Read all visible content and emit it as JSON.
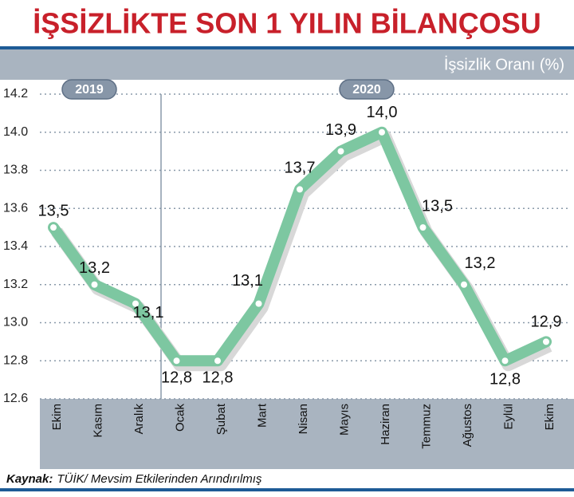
{
  "chart_data": {
    "type": "line",
    "title": "İŞSİZLİKTE SON 1 YILIN BİLANÇOSU",
    "y_label": "İşsizlik Oranı (%)",
    "annotations": [
      "2019",
      "2020"
    ],
    "source_label": "Kaynak:",
    "source": "TÜİK/ Mevsim Etkilerinden Arındırılmış",
    "categories": [
      "Ekim",
      "Kasım",
      "Aralık",
      "Ocak",
      "Şubat",
      "Mart",
      "Nisan",
      "Mayıs",
      "Haziran",
      "Temmuz",
      "Ağustos",
      "Eylül",
      "Ekim"
    ],
    "series": [
      {
        "name": "İşsizlik Oranı",
        "color": "#7dc7a1",
        "values": [
          13.5,
          13.2,
          13.1,
          12.8,
          12.8,
          13.1,
          13.7,
          13.9,
          14.0,
          13.5,
          13.2,
          12.8,
          12.9
        ],
        "value_labels": [
          "13,5",
          "13,2",
          "13,1",
          "12,8",
          "12,8",
          "13,1",
          "13,7",
          "13,9",
          "14,0",
          "13,5",
          "13,2",
          "12,8",
          "12,9"
        ]
      }
    ],
    "ylim": [
      12.6,
      14.2
    ],
    "yticks": [
      12.6,
      12.8,
      {
        "value": 13,
        "label": "13.0"
      },
      13.2,
      13.4,
      13.6,
      13.8,
      {
        "value": 14,
        "label": "14.0"
      },
      14.2
    ],
    "grid": true
  }
}
